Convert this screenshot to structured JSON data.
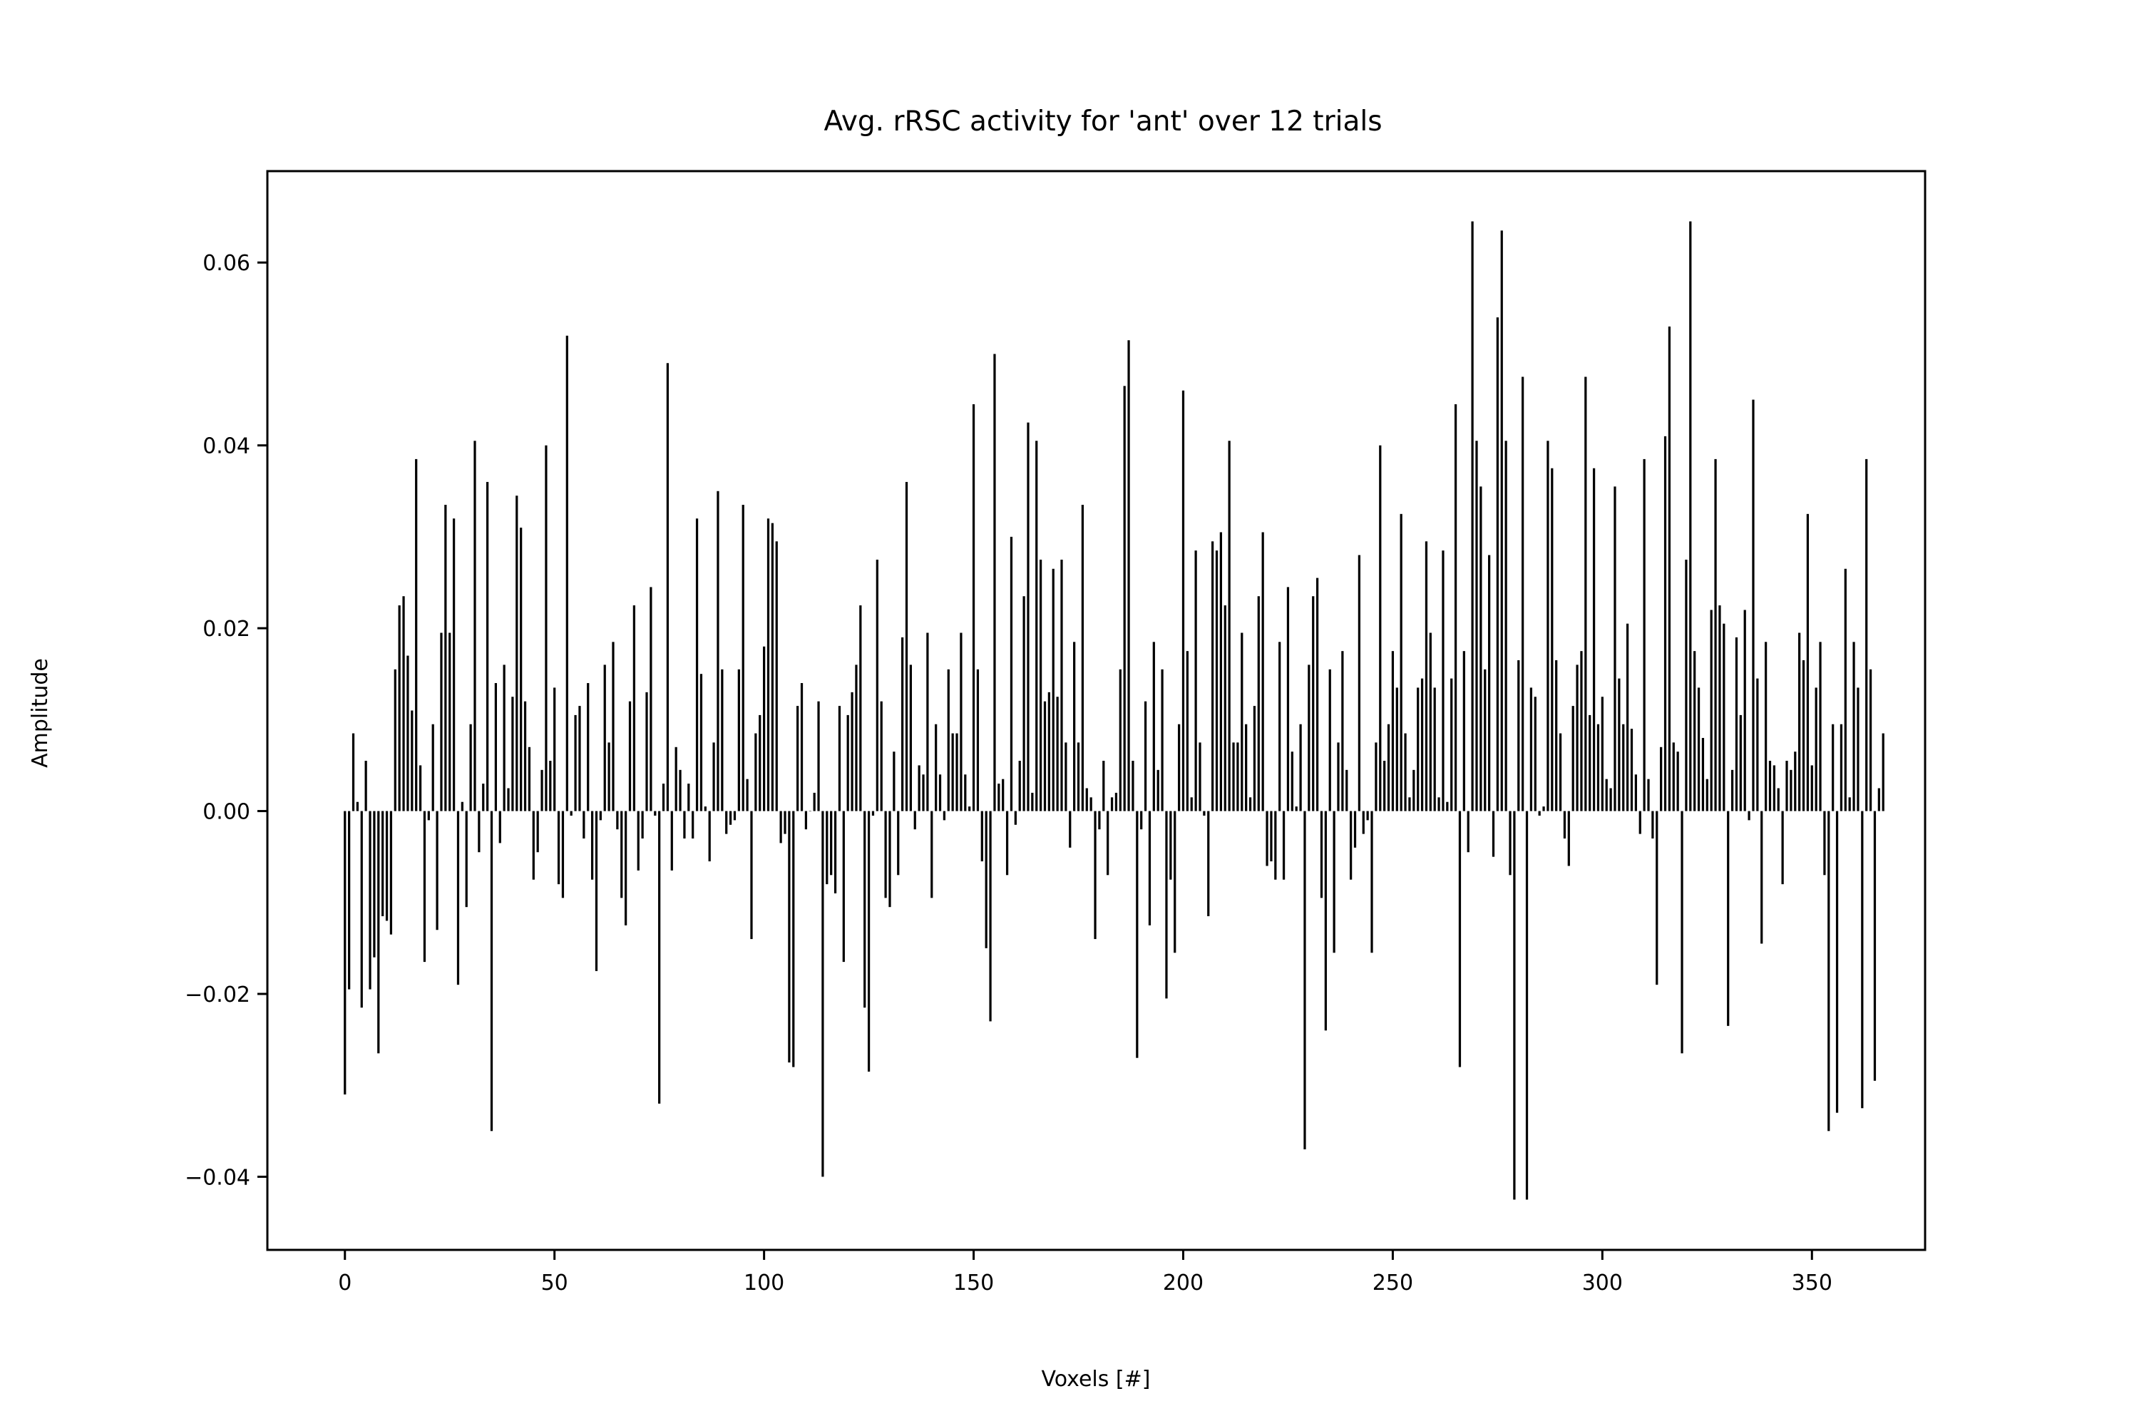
{
  "chart_data": {
    "type": "bar",
    "title": "Avg. rRSC activity for 'ant' over 12 trials",
    "xlabel": "Voxels [#]",
    "ylabel": "Amplitude",
    "xlim": [
      -18.5,
      377
    ],
    "ylim": [
      -0.048,
      0.07
    ],
    "x_ticks": [
      0,
      50,
      100,
      150,
      200,
      250,
      300,
      350
    ],
    "x_tick_labels": [
      "0",
      "50",
      "100",
      "150",
      "200",
      "250",
      "300",
      "350"
    ],
    "y_ticks": [
      -0.04,
      -0.02,
      0.0,
      0.02,
      0.04,
      0.06
    ],
    "y_tick_labels": [
      "−0.04",
      "−0.02",
      "0.00",
      "0.02",
      "0.04",
      "0.06"
    ],
    "grid": false,
    "legend": false,
    "bar_color": "#000000",
    "x_start": 0,
    "values": [
      -0.031,
      -0.0195,
      0.0085,
      0.001,
      -0.0215,
      0.0055,
      -0.0195,
      -0.016,
      -0.0265,
      -0.0115,
      -0.012,
      -0.0135,
      0.0155,
      0.0225,
      0.0235,
      0.017,
      0.011,
      0.0385,
      0.005,
      -0.0165,
      -0.001,
      0.0095,
      -0.013,
      0.0195,
      0.0335,
      0.0195,
      0.032,
      -0.019,
      0.001,
      -0.0105,
      0.0095,
      0.0405,
      -0.0045,
      0.003,
      0.036,
      -0.035,
      0.014,
      -0.0035,
      0.016,
      0.0025,
      0.0125,
      0.0345,
      0.031,
      0.012,
      0.007,
      -0.0075,
      -0.0045,
      0.0045,
      0.04,
      0.0055,
      0.0135,
      -0.008,
      -0.0095,
      0.052,
      -0.0005,
      0.0105,
      0.0115,
      -0.003,
      0.014,
      -0.0075,
      -0.0175,
      -0.001,
      0.016,
      0.0075,
      0.0185,
      -0.002,
      -0.0095,
      -0.0125,
      0.012,
      0.0225,
      -0.0065,
      -0.003,
      0.013,
      0.0245,
      -0.0005,
      -0.032,
      0.003,
      0.049,
      -0.0065,
      0.007,
      0.0045,
      -0.003,
      0.003,
      -0.003,
      0.032,
      0.015,
      0.0005,
      -0.0055,
      0.0075,
      0.035,
      0.0155,
      -0.0025,
      -0.0015,
      -0.001,
      0.0155,
      0.0335,
      0.0035,
      -0.014,
      0.0085,
      0.0105,
      0.018,
      0.032,
      0.0315,
      0.0295,
      -0.0035,
      -0.0025,
      -0.0275,
      -0.028,
      0.0115,
      0.014,
      -0.002,
      0.0,
      0.002,
      0.012,
      -0.04,
      -0.008,
      -0.007,
      -0.009,
      0.0115,
      -0.0165,
      0.0105,
      0.013,
      0.016,
      0.0225,
      -0.0215,
      -0.0285,
      -0.0005,
      0.0275,
      0.012,
      -0.0095,
      -0.0105,
      0.0065,
      -0.007,
      0.019,
      0.036,
      0.016,
      -0.002,
      0.005,
      0.004,
      0.0195,
      -0.0095,
      0.0095,
      0.004,
      -0.001,
      0.0155,
      0.0085,
      0.0085,
      0.0195,
      0.004,
      0.0005,
      0.0445,
      0.0155,
      -0.0055,
      -0.015,
      -0.023,
      0.05,
      0.003,
      0.0035,
      -0.007,
      0.03,
      -0.0015,
      0.0055,
      0.0235,
      0.0425,
      0.002,
      0.0405,
      0.0275,
      0.012,
      0.013,
      0.0265,
      0.0125,
      0.0275,
      0.0075,
      -0.004,
      0.0185,
      0.0075,
      0.0335,
      0.0025,
      0.0015,
      -0.014,
      -0.002,
      0.0055,
      -0.007,
      0.0015,
      0.002,
      0.0155,
      0.0465,
      0.0515,
      0.0055,
      -0.027,
      -0.002,
      0.012,
      -0.0125,
      0.0185,
      0.0045,
      0.0155,
      -0.0205,
      -0.0075,
      -0.0155,
      0.0095,
      0.046,
      0.0175,
      0.0015,
      0.0285,
      0.0075,
      -0.0005,
      -0.0115,
      0.0295,
      0.0285,
      0.0305,
      0.0225,
      0.0405,
      0.0075,
      0.0075,
      0.0195,
      0.0095,
      0.0015,
      0.0115,
      0.0235,
      0.0305,
      -0.006,
      -0.0055,
      -0.0075,
      0.0185,
      -0.0075,
      0.0245,
      0.0065,
      0.0005,
      0.0095,
      -0.037,
      0.016,
      0.0235,
      0.0255,
      -0.0095,
      -0.024,
      0.0155,
      -0.0155,
      0.0075,
      0.0175,
      0.0045,
      -0.0075,
      -0.004,
      0.028,
      -0.0025,
      -0.001,
      -0.0155,
      0.0075,
      0.04,
      0.0055,
      0.0095,
      0.0175,
      0.0135,
      0.0325,
      0.0085,
      0.0015,
      0.0045,
      0.0135,
      0.0145,
      0.0295,
      0.0195,
      0.0135,
      0.0015,
      0.0285,
      0.001,
      0.0145,
      0.0445,
      -0.028,
      0.0175,
      -0.0045,
      0.0645,
      0.0405,
      0.0355,
      0.0155,
      0.028,
      -0.005,
      0.054,
      0.0635,
      0.0405,
      -0.007,
      -0.0425,
      0.0165,
      0.0475,
      -0.0425,
      0.0135,
      0.0125,
      -0.0005,
      0.0005,
      0.0405,
      0.0375,
      0.0165,
      0.0085,
      -0.003,
      -0.006,
      0.0115,
      0.016,
      0.0175,
      0.0475,
      0.0105,
      0.0375,
      0.0095,
      0.0125,
      0.0035,
      0.0025,
      0.0355,
      0.0145,
      0.0095,
      0.0205,
      0.009,
      0.004,
      -0.0025,
      0.0385,
      0.0035,
      -0.003,
      -0.019,
      0.007,
      0.041,
      0.053,
      0.0075,
      0.0065,
      -0.0265,
      0.0275,
      0.0645,
      0.0175,
      0.0135,
      0.008,
      0.0035,
      0.022,
      0.0385,
      0.0225,
      0.0205,
      -0.0235,
      0.0045,
      0.019,
      0.0105,
      0.022,
      -0.001,
      0.045,
      0.0145,
      -0.0145,
      0.0185,
      0.0055,
      0.005,
      0.0025,
      -0.008,
      0.0055,
      0.0045,
      0.0065,
      0.0195,
      0.0165,
      0.0325,
      0.005,
      0.0135,
      0.0185,
      -0.007,
      -0.035,
      0.0095,
      -0.033,
      0.0095,
      0.0265,
      0.0015,
      0.0185,
      0.0135,
      -0.0325,
      0.0385,
      0.0155,
      -0.0295,
      0.0025,
      0.0085
    ]
  }
}
